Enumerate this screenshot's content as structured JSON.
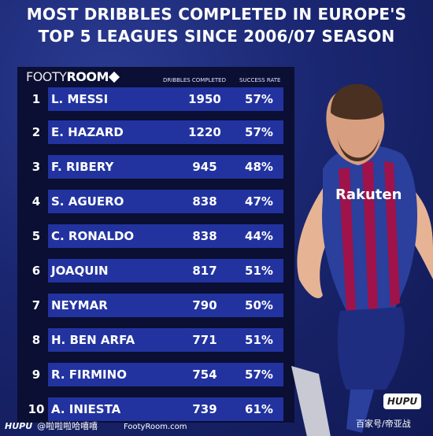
{
  "title": {
    "line1": "MOST DRIBBLES COMPLETED IN EUROPE'S",
    "line2": "TOP 5 LEAGUES SINCE 2006/07 SEASON"
  },
  "brand": {
    "part1": "FOOTY",
    "part2": "ROOM"
  },
  "headers": {
    "dribbles": "DRIBBLES COMPLETED",
    "rate": "SUCCESS RATE"
  },
  "rows": [
    {
      "rank": "1",
      "name": "L. MESSI",
      "dribbles": "1950",
      "rate": "57%"
    },
    {
      "rank": "2",
      "name": "E. HAZARD",
      "dribbles": "1220",
      "rate": "57%"
    },
    {
      "rank": "3",
      "name": "F. RIBERY",
      "dribbles": "945",
      "rate": "48%"
    },
    {
      "rank": "4",
      "name": "S. AGUERO",
      "dribbles": "838",
      "rate": "47%"
    },
    {
      "rank": "5",
      "name": "C. RONALDO",
      "dribbles": "838",
      "rate": "44%"
    },
    {
      "rank": "6",
      "name": "JOAQUIN",
      "dribbles": "817",
      "rate": "51%"
    },
    {
      "rank": "7",
      "name": "NEYMAR",
      "dribbles": "790",
      "rate": "50%"
    },
    {
      "rank": "8",
      "name": "H. BEN ARFA",
      "dribbles": "771",
      "rate": "51%"
    },
    {
      "rank": "9",
      "name": "R. FIRMINO",
      "dribbles": "754",
      "rate": "57%"
    },
    {
      "rank": "10",
      "name": "A. INIESTA",
      "dribbles": "739",
      "rate": "61%"
    }
  ],
  "player": {
    "sponsor": "Rakuten"
  },
  "footer": {
    "source": "FootyRoom.com",
    "hupu": "HUPU",
    "handle": "@啦啦啦哈嘻嘻",
    "stamp": "HUPU",
    "watermark": "百家号/帝亚战"
  }
}
